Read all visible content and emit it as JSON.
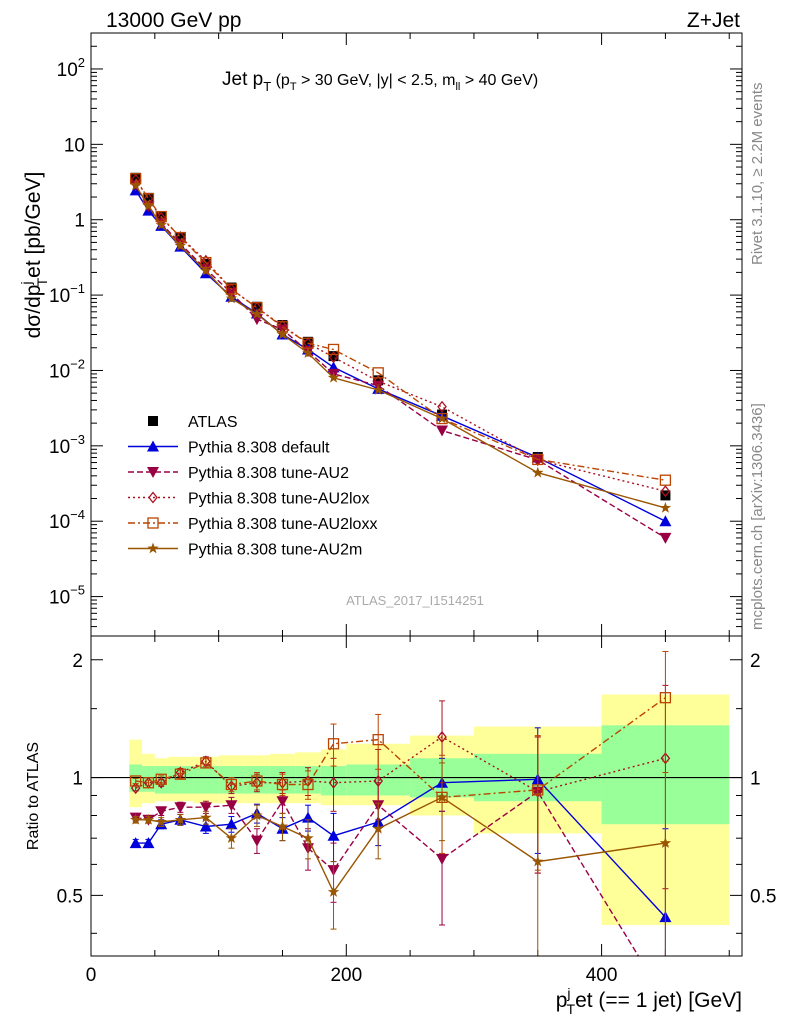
{
  "header": {
    "left": "13000 GeV pp",
    "right": "Z+Jet"
  },
  "side": {
    "rivet": "Rivet 3.1.10, ≥ 2.2M events",
    "mcplots": "mcplots.cern.ch [arXiv:1306.3436]"
  },
  "colors": {
    "atlas": "#000000",
    "default": "#0000dd",
    "au2": "#990044",
    "au2lox": "#aa1122",
    "au2loxx": "#bb4400",
    "au2m": "#995500",
    "band_stat": "#99ff99",
    "band_tot": "#ffff99"
  },
  "chart_data": {
    "type": "line",
    "title": "Jet p_T (p_T > 30 GeV, |y| < 2.5, m_ll > 40 GeV)",
    "title_parts": {
      "main": "Jet p",
      "main_sub": "T",
      "p_open": " (p",
      "p_sub": "T",
      "cut1": " > 30 GeV, |y| < 2.5, m",
      "ll_sub": "ll",
      "cut2": " > 40 GeV)"
    },
    "ylabel": "dσ/dp_T^j et [pb/GeV]",
    "ylabel_parts": {
      "a": "dσ/dp",
      "sup": "j",
      "sub": "T",
      "b": "et [pb/GeV]"
    },
    "xlabel": "p_T^j et (== 1 jet) [GeV]",
    "xlabel_parts": {
      "a": "p",
      "sup": "j",
      "sub": "T",
      "b": "et (== 1 jet) [GeV]"
    },
    "ratio_ylabel": "Ratio to ATLAS",
    "watermark": "ATLAS_2017_I1514251",
    "xlim": [
      0,
      510
    ],
    "ylim": [
      3e-06,
      300
    ],
    "ylog": true,
    "ratio_ylim": [
      0.35,
      2.3
    ],
    "ratio_ylog": true,
    "x_ticks": [
      0,
      200,
      400
    ],
    "x_tick_labels": [
      "0",
      "200",
      "400"
    ],
    "y_ticks": [
      {
        "v": 100,
        "base": "10",
        "exp": "2"
      },
      {
        "v": 10,
        "base": "10",
        "exp": ""
      },
      {
        "v": 1,
        "base": "1",
        "exp": ""
      },
      {
        "v": 0.1,
        "base": "10",
        "exp": "−1"
      },
      {
        "v": 0.01,
        "base": "10",
        "exp": "−2"
      },
      {
        "v": 0.001,
        "base": "10",
        "exp": "−3"
      },
      {
        "v": 0.0001,
        "base": "10",
        "exp": "−4"
      },
      {
        "v": 1e-05,
        "base": "10",
        "exp": "−5"
      }
    ],
    "ratio_ticks": [
      0.5,
      1,
      2
    ],
    "ratio_tick_labels": [
      "0.5",
      "1",
      "2"
    ],
    "x_edges": [
      30,
      40,
      50,
      60,
      80,
      100,
      120,
      140,
      160,
      180,
      200,
      250,
      300,
      400,
      500
    ],
    "x": [
      35,
      45,
      55,
      70,
      90,
      110,
      130,
      150,
      170,
      190,
      225,
      275,
      350,
      450
    ],
    "atlas": [
      3.6,
      1.95,
      1.1,
      0.57,
      0.26,
      0.126,
      0.07,
      0.04,
      0.024,
      0.0155,
      0.0074,
      0.0026,
      0.00071,
      0.00022
    ],
    "band_stat": [
      [
        0.92,
        1.08
      ],
      [
        0.92,
        1.07
      ],
      [
        0.91,
        1.07
      ],
      [
        0.91,
        1.07
      ],
      [
        0.91,
        1.07
      ],
      [
        0.91,
        1.07
      ],
      [
        0.91,
        1.07
      ],
      [
        0.91,
        1.07
      ],
      [
        0.91,
        1.07
      ],
      [
        0.9,
        1.07
      ],
      [
        0.9,
        1.08
      ],
      [
        0.89,
        1.12
      ],
      [
        0.87,
        1.15
      ],
      [
        0.76,
        1.36
      ]
    ],
    "band_tot": [
      [
        0.84,
        1.25
      ],
      [
        0.86,
        1.15
      ],
      [
        0.87,
        1.12
      ],
      [
        0.87,
        1.13
      ],
      [
        0.86,
        1.13
      ],
      [
        0.86,
        1.14
      ],
      [
        0.86,
        1.14
      ],
      [
        0.86,
        1.15
      ],
      [
        0.86,
        1.16
      ],
      [
        0.85,
        1.18
      ],
      [
        0.85,
        1.22
      ],
      [
        0.8,
        1.28
      ],
      [
        0.72,
        1.35
      ],
      [
        0.42,
        1.63
      ]
    ],
    "series": [
      {
        "name": "ATLAS",
        "key": "atlas",
        "marker": "square",
        "dash": "none",
        "ratio": [
          1,
          1,
          1,
          1,
          1,
          1,
          1,
          1,
          1,
          1,
          1,
          1,
          1,
          1
        ]
      },
      {
        "name": "Pythia 8.308 default",
        "key": "default",
        "marker": "triangle-up",
        "dash": "none",
        "values": [
          2.45,
          1.32,
          0.83,
          0.44,
          0.195,
          0.095,
          0.057,
          0.03,
          0.019,
          0.011,
          0.0057,
          0.0025,
          0.0007,
          0.0001
        ],
        "ratio": [
          0.68,
          0.68,
          0.76,
          0.78,
          0.75,
          0.76,
          0.81,
          0.74,
          0.79,
          0.71,
          0.77,
          0.97,
          0.99,
          0.44
        ],
        "ratio_err": [
          0.015,
          0.015,
          0.02,
          0.025,
          0.03,
          0.035,
          0.045,
          0.05,
          0.06,
          0.1,
          0.1,
          0.15,
          0.35,
          0.3
        ]
      },
      {
        "name": "Pythia 8.308 tune-AU2",
        "key": "au2",
        "marker": "triangle-down",
        "dash": "6,3",
        "values": [
          2.85,
          1.52,
          0.9,
          0.48,
          0.22,
          0.107,
          0.048,
          0.035,
          0.018,
          0.009,
          0.0063,
          0.0016,
          0.00065,
          6e-05
        ],
        "ratio": [
          0.79,
          0.78,
          0.82,
          0.84,
          0.84,
          0.85,
          0.69,
          0.87,
          0.66,
          0.58,
          0.85,
          0.62,
          0.92,
          0.27
        ],
        "ratio_err": [
          0.015,
          0.015,
          0.02,
          0.025,
          0.03,
          0.04,
          0.05,
          0.06,
          0.08,
          0.1,
          0.12,
          0.2,
          0.35,
          0.4
        ]
      },
      {
        "name": "Pythia 8.308 tune-AU2lox",
        "key": "au2lox",
        "marker": "diamond",
        "dash": "2,3",
        "values": [
          3.4,
          1.9,
          1.06,
          0.59,
          0.285,
          0.12,
          0.068,
          0.039,
          0.023,
          0.015,
          0.0072,
          0.0033,
          0.00065,
          0.00025
        ],
        "ratio": [
          0.94,
          0.97,
          0.97,
          1.03,
          1.1,
          0.95,
          0.97,
          0.97,
          0.98,
          0.97,
          0.98,
          1.27,
          0.92,
          1.12
        ],
        "ratio_err": [
          0.015,
          0.015,
          0.02,
          0.025,
          0.03,
          0.04,
          0.05,
          0.06,
          0.08,
          0.15,
          0.2,
          0.3,
          0.35,
          0.6
        ]
      },
      {
        "name": "Pythia 8.308 tune-AU2loxx",
        "key": "au2loxx",
        "marker": "square-open",
        "dash": "7,3,2,3",
        "values": [
          3.5,
          1.9,
          1.1,
          0.58,
          0.27,
          0.12,
          0.068,
          0.038,
          0.023,
          0.019,
          0.0093,
          0.0023,
          0.00066,
          0.00035
        ],
        "ratio": [
          0.98,
          0.97,
          0.99,
          1.02,
          1.09,
          0.96,
          0.98,
          0.96,
          0.96,
          1.22,
          1.25,
          0.89,
          0.93,
          1.6
        ],
        "ratio_err": [
          0.015,
          0.015,
          0.02,
          0.025,
          0.03,
          0.04,
          0.05,
          0.06,
          0.08,
          0.15,
          0.2,
          0.25,
          0.35,
          0.5
        ]
      },
      {
        "name": "Pythia 8.308 tune-AU2m",
        "key": "au2m",
        "marker": "star",
        "dash": "none",
        "values": [
          2.85,
          1.52,
          0.85,
          0.45,
          0.21,
          0.09,
          0.056,
          0.03,
          0.017,
          0.008,
          0.0055,
          0.0023,
          0.00044,
          0.00015
        ],
        "ratio": [
          0.78,
          0.78,
          0.77,
          0.78,
          0.79,
          0.7,
          0.8,
          0.75,
          0.7,
          0.51,
          0.74,
          0.89,
          0.61,
          0.68
        ],
        "ratio_err": [
          0.015,
          0.015,
          0.02,
          0.025,
          0.03,
          0.04,
          0.05,
          0.06,
          0.08,
          0.1,
          0.12,
          0.2,
          0.3,
          0.35
        ]
      }
    ],
    "legend_position": "bottom-left"
  }
}
